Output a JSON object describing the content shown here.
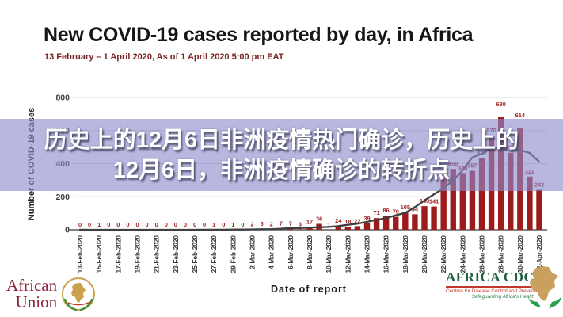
{
  "overlay": {
    "line1": "历史上的12月6日非洲疫情热门确诊，历史上的",
    "line2": "12月6日，非洲疫情确诊的转折点"
  },
  "chart": {
    "title": "New COVID-19 cases reported by day, in Africa",
    "subtitle": "13 February – 1 April 2020,  As of 1 April 2020 5:00 pm EAT",
    "y_axis_title": "Number of COVID-19 cases",
    "x_axis_title": "Date of report"
  },
  "chart_data": {
    "type": "bar",
    "title": "New COVID-19 cases reported by day, in Africa",
    "xlabel": "Date of report",
    "ylabel": "Number of COVID-19 cases",
    "ylim": [
      0,
      800
    ],
    "y_ticks": [
      0,
      200,
      400,
      600,
      800
    ],
    "x_tick_every": 2,
    "grid": true,
    "legend": "none",
    "trend_line": "smoothed moving-average curve over daily bars",
    "categories": [
      "13-Feb-2020",
      "14-Feb-2020",
      "15-Feb-2020",
      "16-Feb-2020",
      "17-Feb-2020",
      "18-Feb-2020",
      "19-Feb-2020",
      "20-Feb-2020",
      "21-Feb-2020",
      "22-Feb-2020",
      "23-Feb-2020",
      "24-Feb-2020",
      "25-Feb-2020",
      "26-Feb-2020",
      "27-Feb-2020",
      "28-Feb-2020",
      "29-Feb-2020",
      "1-Mar-2020",
      "2-Mar-2020",
      "3-Mar-2020",
      "4-Mar-2020",
      "5-Mar-2020",
      "6-Mar-2020",
      "7-Mar-2020",
      "8-Mar-2020",
      "9-Mar-2020",
      "10-Mar-2020",
      "11-Mar-2020",
      "12-Mar-2020",
      "13-Mar-2020",
      "14-Mar-2020",
      "15-Mar-2020",
      "16-Mar-2020",
      "17-Mar-2020",
      "18-Mar-2020",
      "19-Mar-2020",
      "20-Mar-2020",
      "21-Mar-2020",
      "22-Mar-2020",
      "23-Mar-2020",
      "24-Mar-2020",
      "25-Mar-2020",
      "26-Mar-2020",
      "27-Mar-2020",
      "28-Mar-2020",
      "29-Mar-2020",
      "30-Mar-2020",
      "31-Mar-2020",
      "1-Apr-2020"
    ],
    "values": [
      0,
      0,
      1,
      0,
      0,
      0,
      0,
      0,
      0,
      0,
      0,
      0,
      0,
      0,
      1,
      0,
      1,
      0,
      2,
      5,
      2,
      7,
      7,
      3,
      17,
      36,
      1,
      24,
      18,
      22,
      39,
      71,
      86,
      79,
      105,
      94,
      143,
      141,
      311,
      368,
      343,
      357,
      432,
      570,
      680,
      466,
      614,
      322,
      242
    ]
  },
  "footer": {
    "african_union": {
      "line1": "African",
      "line2": "Union"
    },
    "africa_cdc": {
      "name": "AFRICA CDC",
      "tagline1": "Centres for Disease Control and Prevention",
      "tagline2": "Safeguarding Africa's Health"
    }
  },
  "colors": {
    "bar": "#9e1b1b",
    "bar_label": "#9e1b1b",
    "trend": "#3f3f3f",
    "grid": "#d8d8d8",
    "axis": "#5f5f5f",
    "tick_text": "#3a3a3a",
    "subtitle": "#7a2525",
    "overlay_bg": "rgba(140,138,205,0.62)",
    "overlay_text": "#ffffff",
    "au_text": "#8b2438",
    "au_gold": "#c9a24b",
    "au_green": "#3f8f3f",
    "cdc_green": "#20603f",
    "cdc_red": "#c0392b",
    "cdc_tan": "#c9a05e",
    "hand_green": "#2aa14c"
  }
}
